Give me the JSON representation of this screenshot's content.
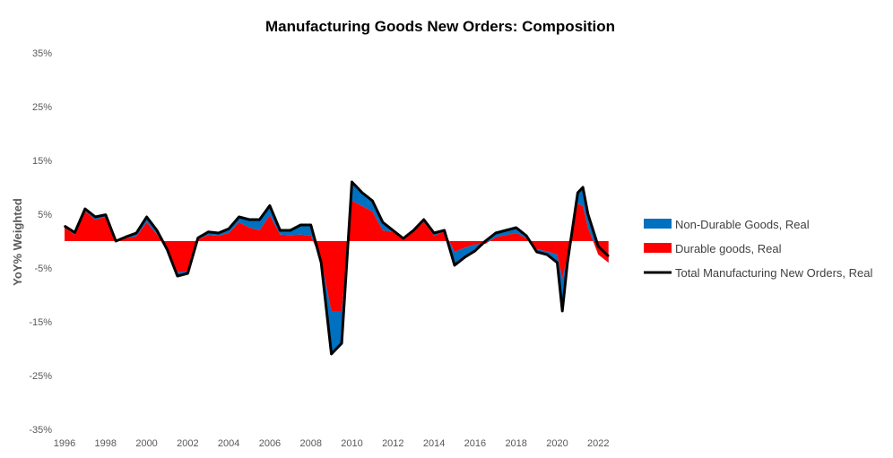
{
  "chart_data": {
    "type": "area",
    "title": "Manufacturing Goods New Orders: Composition",
    "xlabel": "",
    "ylabel": "YoY% Weighted",
    "y_unit": "%",
    "ylim": [
      -35,
      35
    ],
    "y_ticks": [
      -35,
      -25,
      -15,
      -5,
      5,
      15,
      25,
      35
    ],
    "y_tick_labels": [
      "-35%",
      "-25%",
      "-15%",
      "-5%",
      "5%",
      "15%",
      "25%",
      "35%"
    ],
    "x_ticks": [
      1996,
      1998,
      2000,
      2002,
      2004,
      2006,
      2008,
      2010,
      2012,
      2014,
      2016,
      2018,
      2020,
      2022
    ],
    "x_tick_labels": [
      "1996",
      "1998",
      "2000",
      "2002",
      "2004",
      "2006",
      "2008",
      "2010",
      "2012",
      "2014",
      "2016",
      "2018",
      "2020",
      "2022"
    ],
    "x_range": [
      1996,
      2022.6
    ],
    "grid": false,
    "legend_position": "right",
    "x": [
      1996.0,
      1996.5,
      1997.0,
      1997.5,
      1998.0,
      1998.5,
      1999.0,
      1999.5,
      2000.0,
      2000.5,
      2001.0,
      2001.5,
      2002.0,
      2002.5,
      2003.0,
      2003.5,
      2004.0,
      2004.5,
      2005.0,
      2005.5,
      2006.0,
      2006.5,
      2007.0,
      2007.5,
      2008.0,
      2008.5,
      2009.0,
      2009.5,
      2010.0,
      2010.5,
      2011.0,
      2011.5,
      2012.0,
      2012.5,
      2013.0,
      2013.5,
      2014.0,
      2014.5,
      2015.0,
      2015.5,
      2016.0,
      2016.5,
      2017.0,
      2017.5,
      2018.0,
      2018.5,
      2019.0,
      2019.5,
      2020.0,
      2020.25,
      2020.5,
      2021.0,
      2021.25,
      2021.5,
      2022.0,
      2022.5
    ],
    "series": [
      {
        "name": "Non-Durable Goods, Real",
        "color": "#0070C0",
        "type": "stacked-area",
        "values": [
          0.3,
          0.4,
          0.5,
          0.5,
          0.4,
          0.2,
          0.3,
          0.6,
          1.0,
          0.8,
          -0.3,
          -0.7,
          -0.4,
          0.3,
          0.6,
          0.5,
          0.8,
          1.0,
          1.5,
          2.0,
          1.8,
          0.8,
          0.9,
          1.8,
          2.0,
          -0.5,
          -8.0,
          -6.0,
          3.5,
          2.5,
          2.0,
          1.5,
          0.3,
          0.0,
          0.2,
          0.4,
          0.5,
          0.2,
          -2.5,
          -1.8,
          -1.2,
          0.5,
          0.8,
          0.9,
          1.0,
          0.5,
          -0.5,
          -0.6,
          -1.5,
          -6.0,
          -1.0,
          2.0,
          3.5,
          2.5,
          1.5,
          1.2
        ]
      },
      {
        "name": "Durable goods, Real",
        "color": "#FF0000",
        "type": "stacked-area",
        "values": [
          2.5,
          1.2,
          5.5,
          4.0,
          4.5,
          -0.2,
          0.5,
          0.9,
          3.5,
          1.2,
          -1.3,
          -5.8,
          -5.6,
          0.3,
          1.1,
          1.0,
          1.5,
          3.5,
          2.5,
          2.0,
          4.8,
          1.2,
          1.1,
          1.2,
          1.0,
          -3.5,
          -13.0,
          -13.0,
          7.5,
          6.5,
          5.5,
          2.0,
          1.7,
          0.5,
          1.8,
          3.6,
          1.0,
          1.8,
          -2.0,
          -1.2,
          -0.6,
          -0.5,
          0.7,
          1.1,
          1.5,
          0.5,
          -1.5,
          -1.9,
          -2.5,
          -7.0,
          -3.0,
          7.0,
          6.5,
          2.5,
          -2.5,
          -4.0
        ]
      },
      {
        "name": "Total Manufacturing New Orders, Real",
        "color": "#000000",
        "type": "line",
        "values": [
          2.8,
          1.6,
          6.0,
          4.5,
          4.9,
          0.0,
          0.8,
          1.5,
          4.5,
          2.0,
          -1.6,
          -6.5,
          -6.0,
          0.6,
          1.7,
          1.5,
          2.3,
          4.5,
          4.0,
          4.0,
          6.6,
          2.0,
          2.0,
          3.0,
          3.0,
          -4.0,
          -21.0,
          -19.0,
          11.0,
          9.0,
          7.5,
          3.5,
          2.0,
          0.5,
          2.0,
          4.0,
          1.5,
          2.0,
          -4.5,
          -3.0,
          -1.8,
          0.0,
          1.5,
          2.0,
          2.5,
          1.0,
          -2.0,
          -2.5,
          -4.0,
          -13.0,
          -4.0,
          9.0,
          10.0,
          5.0,
          -1.0,
          -2.8
        ]
      }
    ]
  }
}
